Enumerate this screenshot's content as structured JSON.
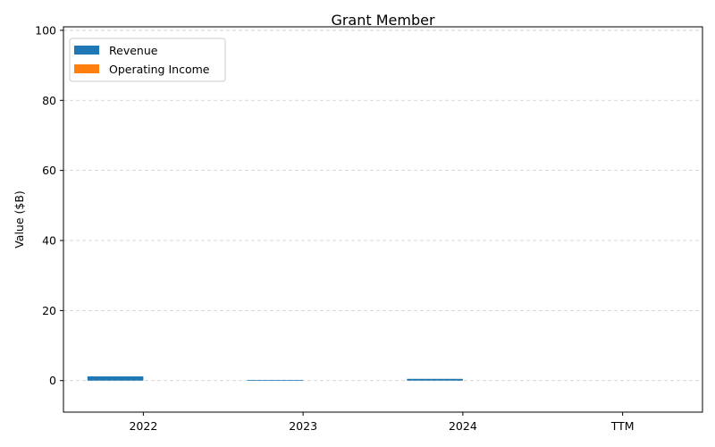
{
  "chart_data": {
    "type": "bar",
    "title": "Grant Member",
    "xlabel": "",
    "ylabel": "Value ($B)",
    "categories": [
      "2022",
      "2023",
      "2024",
      "TTM"
    ],
    "series": [
      {
        "name": "Revenue",
        "color": "#1f77b4",
        "values": [
          1.2,
          0.2,
          0.5,
          0.0
        ]
      },
      {
        "name": "Operating Income",
        "color": "#ff7f0e",
        "values": [
          0.0,
          0.0,
          0.0,
          0.0
        ]
      }
    ],
    "ylim": [
      -9,
      101
    ],
    "yticks": [
      0,
      20,
      40,
      60,
      80,
      100
    ],
    "grid": true,
    "legend_position": "top-left"
  }
}
